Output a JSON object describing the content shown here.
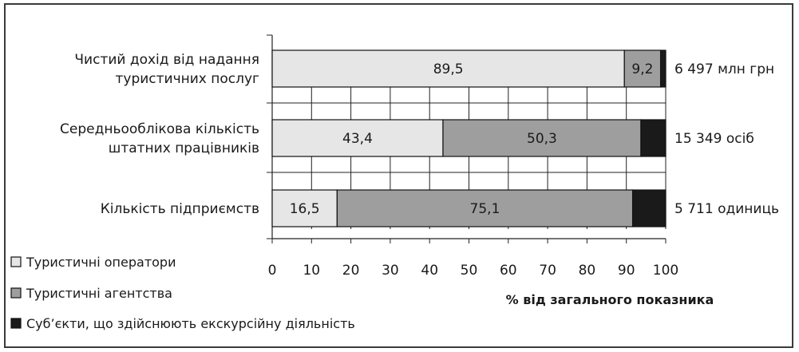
{
  "chart_data": {
    "type": "bar",
    "orientation": "horizontal",
    "stacked": true,
    "categories": [
      [
        "Чистий дохід від надання",
        "туристичних послуг"
      ],
      [
        "Середньооблікова кількість",
        "штатних працівників"
      ],
      [
        "Кількість підприємств"
      ]
    ],
    "series": [
      {
        "name": "Туристичні оператори",
        "color": "#e6e6e6",
        "values": [
          89.5,
          43.4,
          16.5
        ],
        "labels": [
          "89,5",
          "43,4",
          "16,5"
        ]
      },
      {
        "name": "Туристичні агентства",
        "color": "#9e9e9e",
        "values": [
          9.2,
          50.3,
          75.1
        ],
        "labels": [
          "9,2",
          "50,3",
          "75,1"
        ]
      },
      {
        "name": "Суб’єкти, що здійснюють екскурсійну діяльність",
        "color": "#1a1a1a",
        "values": [
          1.3,
          6.3,
          8.4
        ],
        "labels": [
          "",
          "",
          ""
        ]
      }
    ],
    "totals": [
      "6 497 млн грн",
      "15 349 осіб",
      "5 711 одиниць"
    ],
    "xlabel": "% від загального показника",
    "xlim": [
      0,
      100
    ],
    "xticks": [
      0,
      10,
      20,
      30,
      40,
      50,
      60,
      70,
      80,
      90,
      100
    ],
    "grid": true,
    "legend": "bottom-left"
  }
}
